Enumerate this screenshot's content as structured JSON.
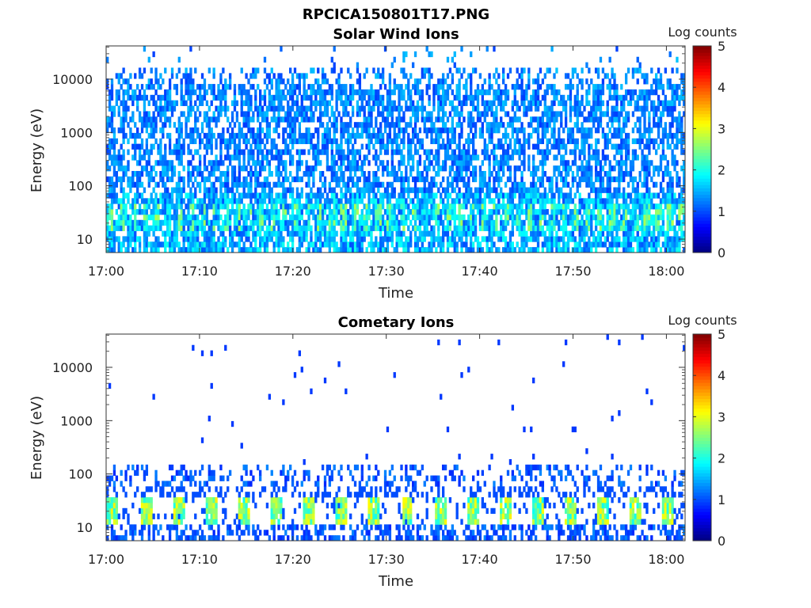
{
  "figure_title": "RPCICA150801T17.PNG",
  "chart_data": [
    {
      "type": "heatmap",
      "title": "Solar Wind Ions",
      "xlabel": "Time",
      "ylabel": "Energy (eV)",
      "y_scale": "log",
      "ylim": [
        5.6,
        42000
      ],
      "xlim": [
        "17:00",
        "18:02"
      ],
      "x_ticks": [
        "17:00",
        "17:10",
        "17:20",
        "17:30",
        "17:40",
        "17:50",
        "18:00"
      ],
      "y_ticks": [
        10,
        100,
        1000,
        10000
      ],
      "y_tick_labels": [
        "10",
        "100",
        "1000",
        "10000"
      ],
      "colorbar": {
        "label": "Log counts",
        "range": [
          0,
          5
        ],
        "ticks": [
          "0",
          "1",
          "2",
          "3",
          "4",
          "5"
        ],
        "colormap": "jet"
      },
      "pattern": "dense noise 1-2 log counts from ~10 eV to ~20000 eV; enhanced 1.5-2.5 log counts near 20-40 eV with ~1.2 min periodicity"
    },
    {
      "type": "heatmap",
      "title": "Cometary Ions",
      "xlabel": "Time",
      "ylabel": "Energy (eV)",
      "y_scale": "log",
      "ylim": [
        5.6,
        42000
      ],
      "xlim": [
        "17:00",
        "18:02"
      ],
      "x_ticks": [
        "17:00",
        "17:10",
        "17:20",
        "17:30",
        "17:40",
        "17:50",
        "18:00"
      ],
      "y_ticks": [
        10,
        100,
        1000,
        10000
      ],
      "y_tick_labels": [
        "10",
        "100",
        "1000",
        "10000"
      ],
      "colorbar": {
        "label": "Log counts",
        "range": [
          0,
          5
        ],
        "ticks": [
          "0",
          "1",
          "2",
          "3",
          "4",
          "5"
        ],
        "colormap": "jet"
      },
      "pattern": "sparse single counts above 100 eV; intermittent counts 60-130 eV; periodic bursts 2-3.2 log counts near 15-40 eV every ~3.5 min"
    }
  ]
}
